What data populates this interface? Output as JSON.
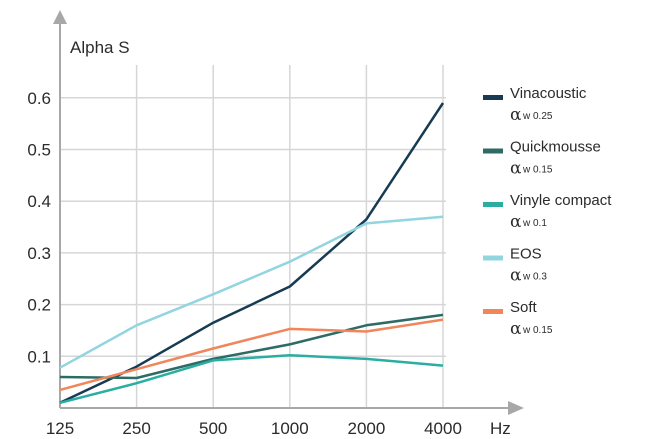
{
  "chart_data": {
    "type": "line",
    "x": [
      "125",
      "250",
      "500",
      "1000",
      "2000",
      "4000"
    ],
    "xlabel": "Hz",
    "ylabel": "Alpha S",
    "yticks": [
      "0.1",
      "0.2",
      "0.3",
      "0.4",
      "0.5",
      "0.6"
    ],
    "ylim": [
      0,
      0.66
    ],
    "grid": true,
    "legend_position": "right",
    "series": [
      {
        "name": "Vinacoustic",
        "alpha_symbol": "α",
        "sub": "w 0.25",
        "color": "#163b52",
        "values": [
          0.01,
          0.08,
          0.165,
          0.235,
          0.365,
          0.59
        ]
      },
      {
        "name": "Quickmousse",
        "alpha_symbol": "α",
        "sub": "w 0.15",
        "color": "#2e6b64",
        "values": [
          0.06,
          0.058,
          0.095,
          0.123,
          0.16,
          0.18
        ]
      },
      {
        "name": "Vinyle compact",
        "alpha_symbol": "α",
        "sub": "w 0.1",
        "color": "#2aaea2",
        "values": [
          0.01,
          0.048,
          0.092,
          0.102,
          0.095,
          0.082
        ]
      },
      {
        "name": "EOS",
        "alpha_symbol": "α",
        "sub": "w 0.3",
        "color": "#92d5e0",
        "values": [
          0.078,
          0.16,
          0.22,
          0.283,
          0.357,
          0.37
        ]
      },
      {
        "name": "Soft",
        "alpha_symbol": "α",
        "sub": "w 0.15",
        "color": "#f0865a",
        "values": [
          0.035,
          0.075,
          0.115,
          0.153,
          0.148,
          0.171
        ]
      }
    ]
  }
}
